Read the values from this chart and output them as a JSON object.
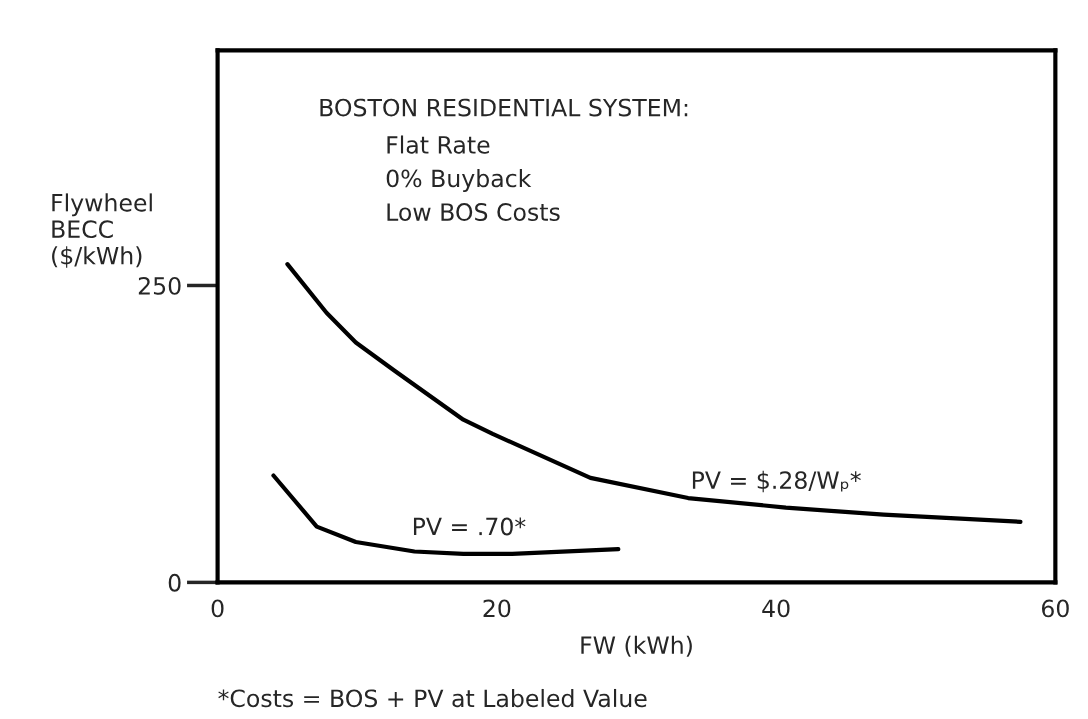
{
  "chart_data": {
    "type": "line",
    "title": "BOSTON RESIDENTIAL SYSTEM:",
    "subtitle": "Flat Rate\n0% Buyback\nLow BOS Costs",
    "xlabel": "FW (kWh)",
    "ylabel": "Flywheel\nBECC\n($/kWh)",
    "xlim": [
      0,
      60
    ],
    "xticks": [
      0,
      20,
      40,
      60
    ],
    "ylim": [
      0,
      448
    ],
    "yticks": [
      0,
      250
    ],
    "series": [
      {
        "color": "#000000",
        "x": [
          5.0,
          7.8,
          9.9,
          12.7,
          17.6,
          19.7,
          26.7,
          33.7,
          40.7,
          47.7,
          57.5
        ],
        "values": [
          268,
          227,
          202,
          178,
          137,
          125,
          88,
          71,
          63,
          57,
          51
        ]
      },
      {
        "color": "#000000",
        "x": [
          4.0,
          7.1,
          9.9,
          14.1,
          17.6,
          21.1,
          28.7
        ],
        "values": [
          90,
          47,
          34,
          26,
          24,
          24,
          28
        ]
      }
    ],
    "marker": "none",
    "line_style": "solid",
    "grid": false,
    "legend": false,
    "annotations": [
      {
        "text": "PV = $.28/Wₚ*",
        "x": 40,
        "y": 63
      },
      {
        "text": "PV = .70*",
        "x": 18,
        "y": 24
      },
      "*Costs = BOS + PV at Labeled Value"
    ]
  }
}
